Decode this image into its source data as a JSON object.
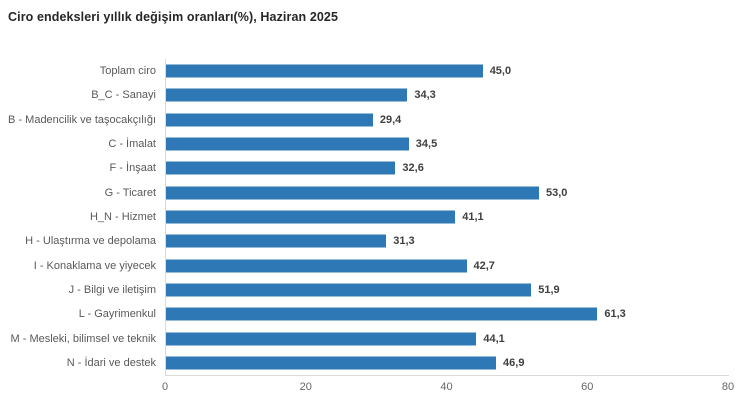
{
  "title": "Ciro endeksleri yıllık değişim oranları(%), Haziran 2025",
  "colors": {
    "bar": "#2e79b5",
    "axis_line": "#d9d9d9",
    "title_text": "#262626",
    "category_text": "#595959",
    "value_text": "#3f3f3f",
    "tick_text": "#666666",
    "background": "#ffffff"
  },
  "chart_data": {
    "type": "bar",
    "orientation": "horizontal",
    "title": "Ciro endeksleri yıllık değişim oranları(%), Haziran 2025",
    "categories": [
      "Toplam ciro",
      "B_C - Sanayi",
      "B - Madencilik ve taşocakçılığı",
      "C - İmalat",
      "F - İnşaat",
      "G - Ticaret",
      "H_N - Hizmet",
      "H - Ulaştırma ve depolama",
      "I - Konaklama ve yiyecek",
      "J - Bilgi ve iletişim",
      "L - Gayrimenkul",
      "M - Mesleki, bilimsel ve teknik",
      "N - İdari ve destek"
    ],
    "values": [
      45.0,
      34.3,
      29.4,
      34.5,
      32.6,
      53.0,
      41.1,
      31.3,
      42.7,
      51.9,
      61.3,
      44.1,
      46.9
    ],
    "value_labels": [
      "45,0",
      "34,3",
      "29,4",
      "34,5",
      "32,6",
      "53,0",
      "41,1",
      "31,3",
      "42,7",
      "51,9",
      "61,3",
      "44,1",
      "46,9"
    ],
    "xlabel": "",
    "ylabel": "",
    "xlim": [
      0,
      80
    ],
    "x_ticks": [
      0,
      20,
      40,
      60,
      80
    ],
    "x_tick_labels": [
      "0",
      "20",
      "40",
      "60",
      "80"
    ],
    "grid": false,
    "legend": false
  }
}
